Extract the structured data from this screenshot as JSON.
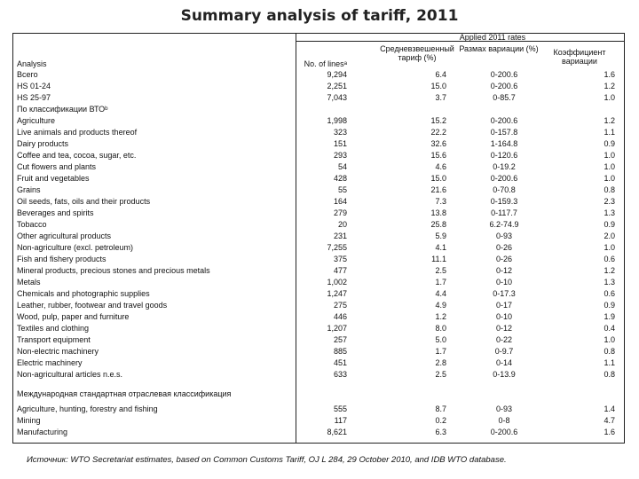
{
  "title": "Summary analysis of tariff, 2011",
  "header": {
    "applied": "Applied 2011 rates",
    "analysis": "Analysis",
    "lines": "No. of linesᵃ",
    "avg": "Средневзвешенный тариф (%)",
    "range": "Размах вариации (%)",
    "cv": "Коэффициент вариации"
  },
  "sections": {
    "bto": "По классификации ВТОᵇ",
    "isic": "Международная стандартная отраслевая классификация"
  },
  "rows": [
    {
      "label": "Всего",
      "lines": "9,294",
      "avg": "6.4",
      "range": "0-200.6",
      "cv": "1.6"
    },
    {
      "label": "HS 01-24",
      "lines": "2,251",
      "avg": "15.0",
      "range": "0-200.6",
      "cv": "1.2"
    },
    {
      "label": "HS 25-97",
      "lines": "7,043",
      "avg": "3.7",
      "range": "0-85.7",
      "cv": "1.0"
    },
    {
      "label": "Agriculture",
      "lines": "1,998",
      "avg": "15.2",
      "range": "0-200.6",
      "cv": "1.2"
    },
    {
      "label": "Live animals and products thereof",
      "lines": "323",
      "avg": "22.2",
      "range": "0-157.8",
      "cv": "1.1"
    },
    {
      "label": "Dairy products",
      "lines": "151",
      "avg": "32.6",
      "range": "1-164.8",
      "cv": "0.9"
    },
    {
      "label": "Coffee and tea, cocoa, sugar, etc.",
      "lines": "293",
      "avg": "15.6",
      "range": "0-120.6",
      "cv": "1.0"
    },
    {
      "label": "Cut flowers and plants",
      "lines": "54",
      "avg": "4.6",
      "range": "0-19.2",
      "cv": "1.0"
    },
    {
      "label": "Fruit and vegetables",
      "lines": "428",
      "avg": "15.0",
      "range": "0-200.6",
      "cv": "1.0"
    },
    {
      "label": "Grains",
      "lines": "55",
      "avg": "21.6",
      "range": "0-70.8",
      "cv": "0.8"
    },
    {
      "label": "Oil seeds, fats, oils and their products",
      "lines": "164",
      "avg": "7.3",
      "range": "0-159.3",
      "cv": "2.3"
    },
    {
      "label": "Beverages and spirits",
      "lines": "279",
      "avg": "13.8",
      "range": "0-117.7",
      "cv": "1.3"
    },
    {
      "label": "Tobacco",
      "lines": "20",
      "avg": "25.8",
      "range": "6.2-74.9",
      "cv": "0.9"
    },
    {
      "label": "Other agricultural products",
      "lines": "231",
      "avg": "5.9",
      "range": "0-93",
      "cv": "2.0"
    },
    {
      "label": "Non-agriculture (excl. petroleum)",
      "lines": "7,255",
      "avg": "4.1",
      "range": "0-26",
      "cv": "1.0"
    },
    {
      "label": "Fish and fishery products",
      "lines": "375",
      "avg": "11.1",
      "range": "0-26",
      "cv": "0.6"
    },
    {
      "label": "Mineral products, precious stones and precious metals",
      "lines": "477",
      "avg": "2.5",
      "range": "0-12",
      "cv": "1.2"
    },
    {
      "label": "Metals",
      "lines": "1,002",
      "avg": "1.7",
      "range": "0-10",
      "cv": "1.3"
    },
    {
      "label": "Chemicals and photographic supplies",
      "lines": "1,247",
      "avg": "4.4",
      "range": "0-17.3",
      "cv": "0.6"
    },
    {
      "label": "Leather, rubber, footwear and travel goods",
      "lines": "275",
      "avg": "4.9",
      "range": "0-17",
      "cv": "0.9"
    },
    {
      "label": "Wood, pulp, paper and furniture",
      "lines": "446",
      "avg": "1.2",
      "range": "0-10",
      "cv": "1.9"
    },
    {
      "label": "Textiles and clothing",
      "lines": "1,207",
      "avg": "8.0",
      "range": "0-12",
      "cv": "0.4"
    },
    {
      "label": "Transport equipment",
      "lines": "257",
      "avg": "5.0",
      "range": "0-22",
      "cv": "1.0"
    },
    {
      "label": "Non-electric machinery",
      "lines": "885",
      "avg": "1.7",
      "range": "0-9.7",
      "cv": "0.8"
    },
    {
      "label": "Electric machinery",
      "lines": "451",
      "avg": "2.8",
      "range": "0-14",
      "cv": "1.1"
    },
    {
      "label": "Non-agricultural articles n.e.s.",
      "lines": "633",
      "avg": "2.5",
      "range": "0-13.9",
      "cv": "0.8"
    },
    {
      "label": "Agriculture, hunting, forestry and fishing",
      "lines": "555",
      "avg": "8.7",
      "range": "0-93",
      "cv": "1.4"
    },
    {
      "label": "Mining",
      "lines": "117",
      "avg": "0.2",
      "range": "0-8",
      "cv": "4.7"
    },
    {
      "label": "Manufacturing",
      "lines": "8,621",
      "avg": "6.3",
      "range": "0-200.6",
      "cv": "1.6"
    }
  ],
  "footer": "Источник: WTO Secretariat estimates, based on Common Customs Tariff, OJ L 284, 29 October 2010, and IDB WTO database."
}
